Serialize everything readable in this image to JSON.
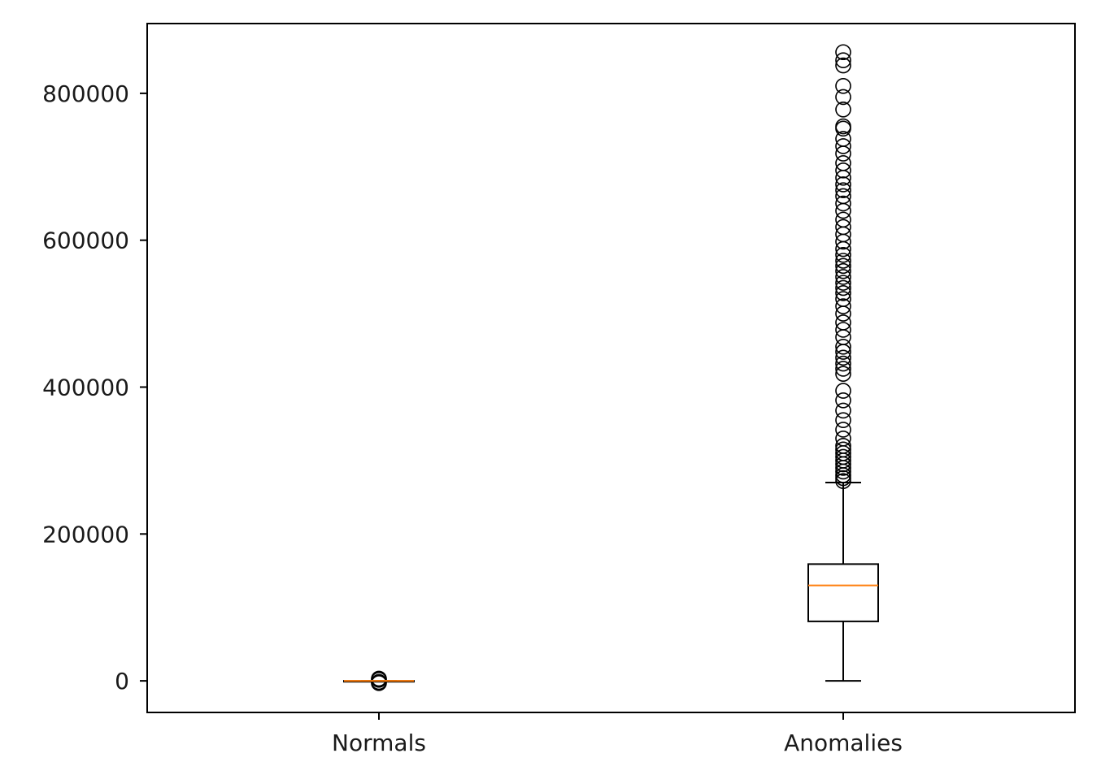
{
  "chart_data": {
    "type": "box",
    "title": "",
    "xlabel": "",
    "ylabel": "",
    "ylim": [
      -43000,
      895000
    ],
    "yticks": [
      0,
      200000,
      400000,
      600000,
      800000
    ],
    "ytick_labels": [
      "0",
      "200000",
      "400000",
      "600000",
      "800000"
    ],
    "categories": [
      "Normals",
      "Anomalies"
    ],
    "grid": false,
    "legend": "none",
    "colors": {
      "box": "#000000",
      "median": "#ff7f0e",
      "flier": "#000000"
    },
    "boxes": [
      {
        "name": "Normals",
        "whisker_low": 0,
        "q1": 0,
        "median": 0,
        "q3": 0,
        "whisker_high": 0,
        "fliers": [
          -3000,
          -1500,
          1500,
          3000
        ]
      },
      {
        "name": "Anomalies",
        "whisker_low": 0,
        "q1": 81000,
        "median": 130000,
        "q3": 159000,
        "whisker_high": 270000,
        "fliers": [
          272000,
          276000,
          280000,
          285000,
          290000,
          295000,
          300000,
          305000,
          310000,
          315000,
          320000,
          330000,
          342000,
          355000,
          368000,
          382000,
          395000,
          418000,
          425000,
          432000,
          440000,
          448000,
          455000,
          468000,
          478000,
          488000,
          500000,
          510000,
          520000,
          528000,
          535000,
          542000,
          550000,
          558000,
          565000,
          572000,
          580000,
          588000,
          598000,
          608000,
          618000,
          628000,
          640000,
          650000,
          660000,
          668000,
          676000,
          685000,
          695000,
          705000,
          718000,
          728000,
          738000,
          752000,
          755000,
          778000,
          795000,
          810000,
          838000,
          845000,
          856000
        ]
      }
    ]
  }
}
